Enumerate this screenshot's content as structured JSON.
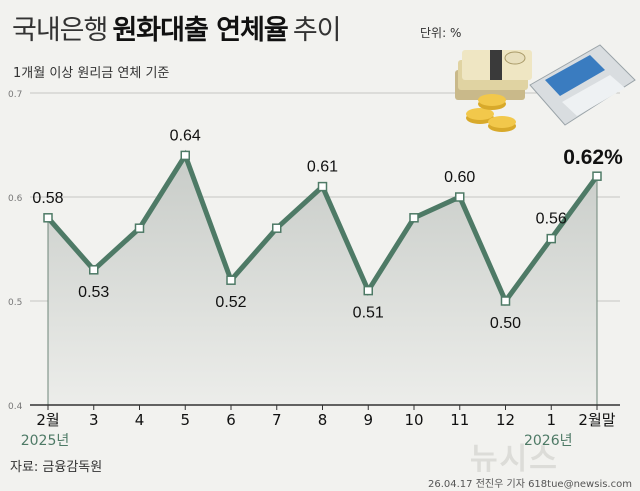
{
  "header": {
    "title_part1": "국내은행",
    "title_part2": "원화대출 연체율",
    "title_part3": "추이",
    "unit": "단위: %",
    "subtitle": "1개월 이상 원리금 연체 기준"
  },
  "footer": {
    "source": "자료: 금융감독원",
    "credit": "26.04.17 전진우 기자 618tue@newsis.com",
    "watermark": "뉴시스"
  },
  "colors": {
    "line": "#4e7a66",
    "area_top": "#c8ccc8",
    "area_bottom": "#ecedea",
    "grid": "#b8b8b4"
  },
  "chart_data": {
    "type": "line",
    "title": "국내은행 원화대출 연체율 추이",
    "ylabel": "%",
    "ylim": [
      0.4,
      0.7
    ],
    "yticks": [
      "0.4",
      "0.5",
      "0.6",
      "0.7"
    ],
    "categories": [
      "2월",
      "3",
      "4",
      "5",
      "6",
      "7",
      "8",
      "9",
      "10",
      "11",
      "12",
      "1",
      "2월말"
    ],
    "year_labels": [
      {
        "index": 0,
        "text": "2025년"
      },
      {
        "index": 11,
        "text": "2026년"
      }
    ],
    "values": [
      0.58,
      0.53,
      0.57,
      0.64,
      0.52,
      0.57,
      0.61,
      0.51,
      0.58,
      0.6,
      0.5,
      0.56,
      0.62
    ],
    "data_labels": [
      {
        "index": 0,
        "text": "0.58",
        "pos": "above"
      },
      {
        "index": 1,
        "text": "0.53",
        "pos": "below"
      },
      {
        "index": 3,
        "text": "0.64",
        "pos": "above"
      },
      {
        "index": 4,
        "text": "0.52",
        "pos": "below"
      },
      {
        "index": 6,
        "text": "0.61",
        "pos": "above"
      },
      {
        "index": 7,
        "text": "0.51",
        "pos": "below"
      },
      {
        "index": 9,
        "text": "0.60",
        "pos": "above"
      },
      {
        "index": 10,
        "text": "0.50",
        "pos": "below"
      },
      {
        "index": 11,
        "text": "0.56",
        "pos": "above"
      },
      {
        "index": 12,
        "text": "0.62%",
        "pos": "above-highlight"
      }
    ]
  }
}
